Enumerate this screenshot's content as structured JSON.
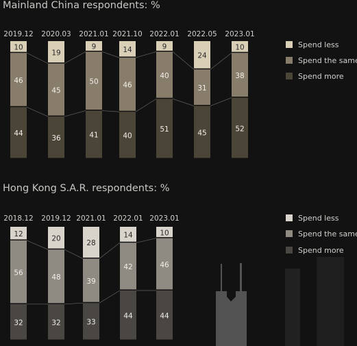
{
  "colors": {
    "background": "#121212",
    "spend_less": "#d9cfb6",
    "spend_same": "#887c6a",
    "spend_more": "#4b4538",
    "hk_spend_less": "#d8d3cb",
    "hk_spend_same": "#8f8a82",
    "hk_spend_more": "#4a4743",
    "text": "#d2d0cb"
  },
  "chart_data": [
    {
      "type": "bar",
      "stacked": true,
      "title": "Mainland China respondents:  %",
      "categories": [
        "2019.12",
        "2020.03",
        "2021.01",
        "2021.10",
        "2022.01",
        "2022.05",
        "2023.01"
      ],
      "series": [
        {
          "name": "Spend less",
          "values": [
            10,
            19,
            9,
            14,
            9,
            24,
            10
          ]
        },
        {
          "name": "Spend the same",
          "values": [
            46,
            45,
            50,
            46,
            40,
            31,
            38
          ]
        },
        {
          "name": "Spend more",
          "values": [
            44,
            36,
            41,
            40,
            51,
            45,
            52
          ]
        }
      ],
      "legend": "right",
      "grid": false
    },
    {
      "type": "bar",
      "stacked": true,
      "title": "Hong Kong S.A.R. respondents:  %",
      "categories": [
        "2018.12",
        "2019.12",
        "2021.01",
        "2022.01",
        "2023.01"
      ],
      "series": [
        {
          "name": "Spend less",
          "values": [
            12,
            20,
            28,
            14,
            10
          ]
        },
        {
          "name": "Spend the same",
          "values": [
            56,
            48,
            39,
            42,
            46
          ]
        },
        {
          "name": "Spend more",
          "values": [
            32,
            32,
            33,
            44,
            44
          ]
        }
      ],
      "legend": "right",
      "grid": false
    }
  ]
}
